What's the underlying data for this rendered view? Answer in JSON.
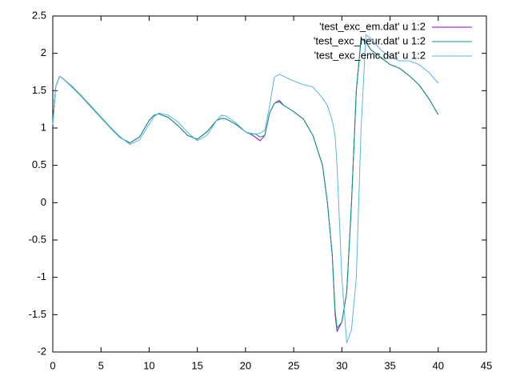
{
  "chart_data": {
    "type": "line",
    "x": [
      0,
      0.3,
      0.7,
      1,
      2,
      3,
      4,
      5,
      6,
      7,
      8,
      9,
      10,
      10.5,
      11,
      12,
      13,
      14,
      15,
      16,
      17,
      17.5,
      18,
      19,
      20,
      20.5,
      21,
      21.5,
      22,
      22.5,
      23,
      23.5,
      24,
      25,
      26,
      27,
      28,
      28.5,
      29,
      29.3,
      29.5,
      30,
      30.5,
      31,
      31.5,
      32,
      32.5,
      33,
      34,
      35,
      36,
      37,
      38,
      39,
      40
    ],
    "series": [
      {
        "name": "'test_exc_em.dat' u 1:2",
        "color": "#9400d3",
        "values": [
          1.05,
          1.55,
          1.69,
          1.67,
          1.55,
          1.42,
          1.28,
          1.14,
          1.0,
          0.87,
          0.8,
          0.88,
          1.1,
          1.17,
          1.19,
          1.14,
          1.03,
          0.9,
          0.85,
          0.95,
          1.1,
          1.13,
          1.12,
          1.05,
          0.95,
          0.92,
          0.88,
          0.83,
          0.9,
          1.2,
          1.33,
          1.37,
          1.3,
          1.22,
          1.12,
          0.9,
          0.5,
          0,
          -0.7,
          -1.5,
          -1.72,
          -1.6,
          -1.2,
          0,
          1.5,
          2.2,
          2.15,
          2.05,
          1.95,
          1.85,
          1.8,
          1.7,
          1.58,
          1.4,
          1.18
        ]
      },
      {
        "name": "'test_exc_heur.dat' u 1:2",
        "color": "#009e73",
        "values": [
          1.05,
          1.55,
          1.69,
          1.67,
          1.55,
          1.42,
          1.28,
          1.14,
          1.0,
          0.87,
          0.8,
          0.88,
          1.1,
          1.17,
          1.19,
          1.14,
          1.03,
          0.9,
          0.85,
          0.95,
          1.1,
          1.13,
          1.12,
          1.05,
          0.95,
          0.92,
          0.92,
          0.88,
          0.9,
          1.2,
          1.33,
          1.35,
          1.3,
          1.22,
          1.12,
          0.9,
          0.5,
          0,
          -0.7,
          -1.45,
          -1.68,
          -1.6,
          -1.2,
          0,
          1.5,
          2.2,
          2.15,
          2.05,
          1.95,
          1.85,
          1.8,
          1.7,
          1.58,
          1.4,
          1.18
        ]
      },
      {
        "name": "'test_exc_emc.dat' u 1:2",
        "color": "#56b4e9",
        "values": [
          1.05,
          1.55,
          1.69,
          1.67,
          1.56,
          1.43,
          1.29,
          1.15,
          1.01,
          0.88,
          0.78,
          0.84,
          1.05,
          1.15,
          1.2,
          1.17,
          1.08,
          0.94,
          0.83,
          0.9,
          1.1,
          1.17,
          1.16,
          1.07,
          0.95,
          0.93,
          0.92,
          0.93,
          0.97,
          1.3,
          1.68,
          1.72,
          1.69,
          1.63,
          1.58,
          1.55,
          1.4,
          1.3,
          1.1,
          0.9,
          0.5,
          -1.0,
          -1.88,
          -1.7,
          -1.0,
          1.0,
          2.25,
          2.2,
          2.05,
          1.95,
          1.9,
          1.9,
          1.85,
          1.75,
          1.6
        ]
      }
    ],
    "xlim": [
      0,
      45
    ],
    "xticks": [
      0,
      5,
      10,
      15,
      20,
      25,
      30,
      35,
      40,
      45
    ],
    "ylim": [
      -2,
      2.5
    ],
    "yticks": [
      -2,
      -1.5,
      -1,
      -0.5,
      0,
      0.5,
      1,
      1.5,
      2,
      2.5
    ],
    "legend": "top-right"
  }
}
